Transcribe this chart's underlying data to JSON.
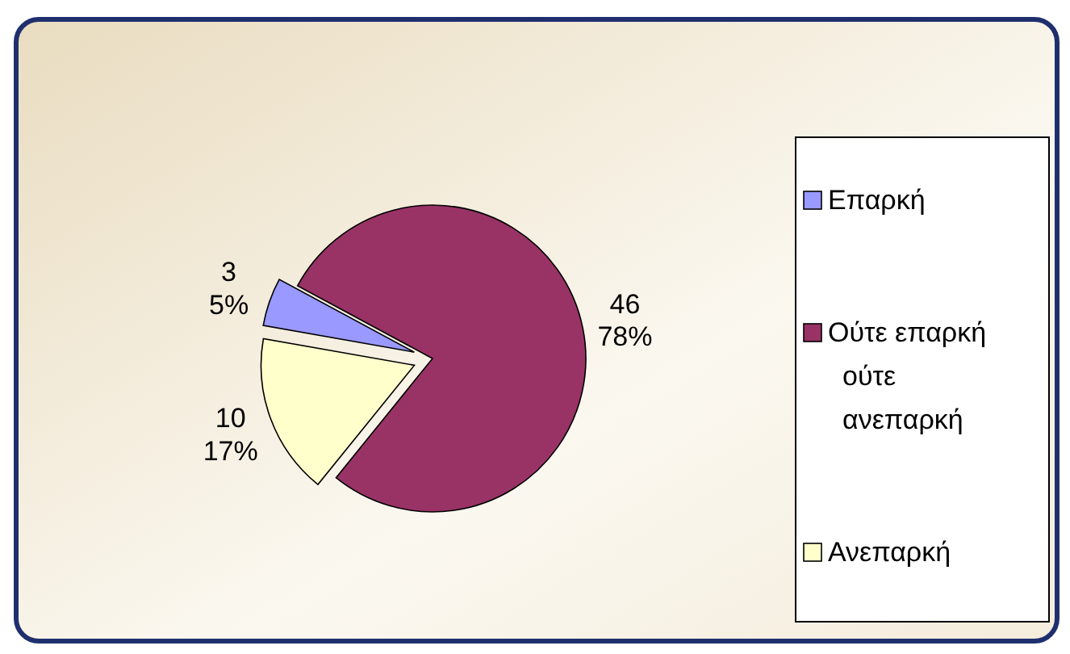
{
  "chart_data": {
    "type": "pie",
    "categories": [
      "Επαρκή",
      "Ούτε επαρκή ούτε ανεπαρκή",
      "Ανεπαρκή"
    ],
    "values": [
      3,
      46,
      10
    ],
    "colors": [
      "#9999ff",
      "#993366",
      "#ffffcc"
    ],
    "value_labels": [
      "3\n5%",
      "46\n78%",
      "10\n17%"
    ],
    "legend": "right"
  }
}
